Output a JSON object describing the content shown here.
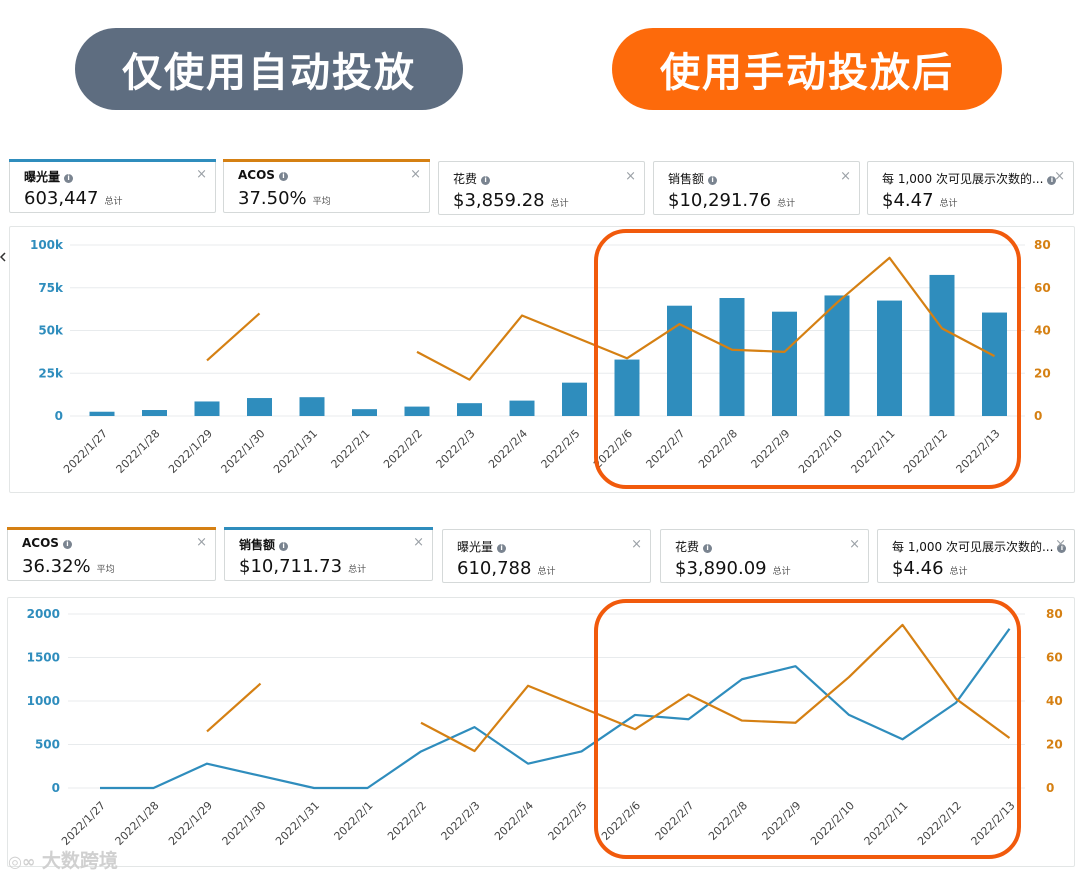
{
  "banners": {
    "left": "仅使用自动投放",
    "right": "使用手动投放后"
  },
  "colors": {
    "blue": "#2f8dbd",
    "orange": "#d58013",
    "highlight": "#f15a0c",
    "gray_pill": "#5e6d80",
    "orange_pill": "#fd6a0b"
  },
  "top_cards": [
    {
      "label": "曝光量",
      "value": "603,447",
      "suffix": "总计",
      "accent": "#2f8dbd"
    },
    {
      "label": "ACOS",
      "value": "37.50%",
      "suffix": "平均",
      "accent": "#d58013"
    },
    {
      "label": "花费",
      "value": "$3,859.28",
      "suffix": "总计"
    },
    {
      "label": "销售额",
      "value": "$10,291.76",
      "suffix": "总计"
    },
    {
      "label": "每 1,000 次可见展示次数的...",
      "value": "$4.47",
      "suffix": "总计"
    }
  ],
  "bottom_cards": [
    {
      "label": "ACOS",
      "value": "36.32%",
      "suffix": "平均",
      "accent": "#d58013"
    },
    {
      "label": "销售额",
      "value": "$10,711.73",
      "suffix": "总计",
      "accent": "#2f8dbd"
    },
    {
      "label": "曝光量",
      "value": "610,788",
      "suffix": "总计"
    },
    {
      "label": "花费",
      "value": "$3,890.09",
      "suffix": "总计"
    },
    {
      "label": "每 1,000 次可见展示次数的...",
      "value": "$4.46",
      "suffix": "总计"
    }
  ],
  "chart_data": [
    {
      "type": "bar",
      "title": "",
      "categories": [
        "2022/1/27",
        "2022/1/28",
        "2022/1/29",
        "2022/1/30",
        "2022/1/31",
        "2022/2/1",
        "2022/2/2",
        "2022/2/3",
        "2022/2/4",
        "2022/2/5",
        "2022/2/6",
        "2022/2/7",
        "2022/2/8",
        "2022/2/9",
        "2022/2/10",
        "2022/2/11",
        "2022/2/12",
        "2022/2/13"
      ],
      "series": [
        {
          "name": "曝光量",
          "type": "bar",
          "axis": "left",
          "values": [
            2500,
            3500,
            8500,
            10500,
            11000,
            4000,
            5500,
            7500,
            9000,
            19500,
            33000,
            64500,
            69000,
            61000,
            70500,
            67500,
            82500,
            60500
          ]
        },
        {
          "name": "ACOS",
          "type": "line",
          "axis": "right",
          "values": [
            null,
            null,
            26,
            48,
            null,
            null,
            30,
            17,
            47,
            37,
            27,
            43,
            31,
            30,
            53,
            74,
            41,
            28
          ]
        }
      ],
      "left_ticks": [
        "0",
        "25k",
        "50k",
        "75k",
        "100k"
      ],
      "ylim_left": [
        0,
        100000
      ],
      "right_ticks": [
        "0",
        "20",
        "40",
        "60",
        "80"
      ],
      "ylim_right": [
        0,
        80
      ]
    },
    {
      "type": "line",
      "title": "",
      "categories": [
        "2022/1/27",
        "2022/1/28",
        "2022/1/29",
        "2022/1/30",
        "2022/1/31",
        "2022/2/1",
        "2022/2/2",
        "2022/2/3",
        "2022/2/4",
        "2022/2/5",
        "2022/2/6",
        "2022/2/7",
        "2022/2/8",
        "2022/2/9",
        "2022/2/10",
        "2022/2/11",
        "2022/2/12",
        "2022/2/13"
      ],
      "series": [
        {
          "name": "销售额",
          "type": "line",
          "axis": "left",
          "values": [
            0,
            0,
            280,
            140,
            0,
            0,
            420,
            700,
            280,
            420,
            840,
            790,
            1250,
            1400,
            840,
            560,
            980,
            1830
          ]
        },
        {
          "name": "ACOS",
          "type": "line",
          "axis": "right",
          "values": [
            null,
            null,
            26,
            48,
            null,
            null,
            30,
            17,
            47,
            37,
            27,
            43,
            31,
            30,
            51,
            75,
            41,
            23
          ]
        }
      ],
      "left_ticks": [
        "0",
        "500",
        "1000",
        "1500",
        "2000"
      ],
      "ylim_left": [
        0,
        2000
      ],
      "right_ticks": [
        "0",
        "20",
        "40",
        "60",
        "80"
      ],
      "ylim_right": [
        0,
        80
      ]
    }
  ],
  "watermark": "大数跨境"
}
